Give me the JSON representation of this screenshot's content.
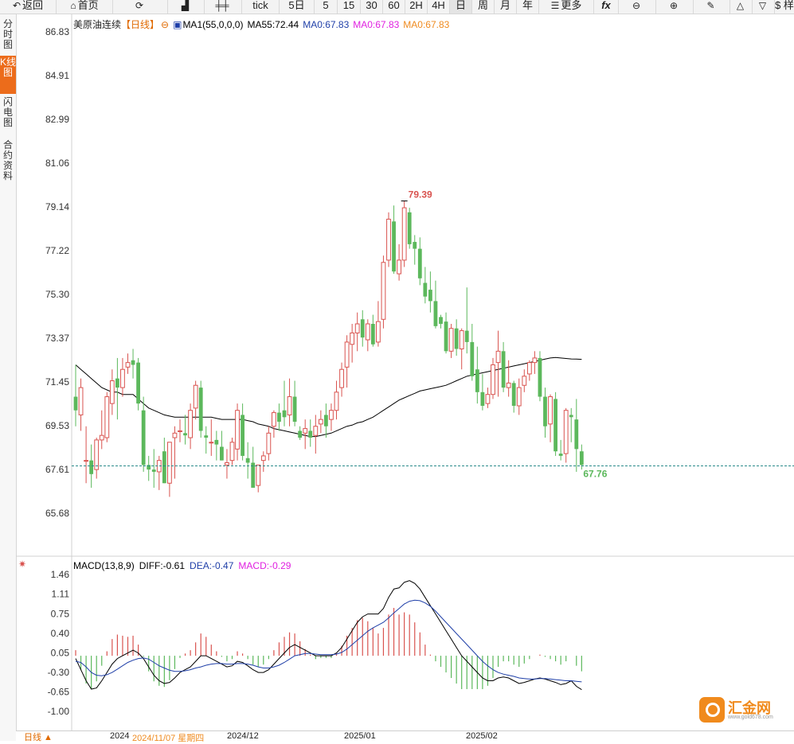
{
  "toolbar": {
    "back": "返回",
    "home": "首页",
    "tick": "tick",
    "d5": "5日",
    "m5": "5",
    "m15": "15",
    "m30": "30",
    "m60": "60",
    "h2": "2H",
    "h4": "4H",
    "day": "日",
    "week": "周",
    "month": "月",
    "year": "年",
    "more": "更多",
    "fx": "fx",
    "dollar": "$ 样"
  },
  "sidebar": [
    {
      "label": "分时图",
      "active": false
    },
    {
      "label": "K线图",
      "active": true
    },
    {
      "label": "闪电图",
      "active": false
    },
    {
      "label": "合约资料",
      "active": false
    }
  ],
  "legend": {
    "symbol": "美原油连续",
    "period": "【日线】",
    "ma1": "MA1(55,0,0,0)",
    "ma55": "MA55:72.44",
    "ma0_a": "MA0:67.83",
    "ma0_b": "MA0:67.83",
    "ma0_c": "MA0:67.83"
  },
  "macd_legend": {
    "title": "MACD(13,8,9)",
    "diff": "DIFF:-0.61",
    "dea": "DEA:-0.47",
    "macd": "MACD:-0.29"
  },
  "bottom": {
    "period": "日线",
    "d1": "2024",
    "d1b": "2024/11/07 星期四",
    "d2": "2024/12",
    "d3": "2025/01",
    "d4": "2025/02"
  },
  "logo": {
    "name": "汇金网",
    "url": "www.gold678.com"
  },
  "colors": {
    "up": "#d9534f",
    "down": "#5cb85c",
    "ma": "#000000",
    "diff": "#000000",
    "dea": "#1f3fa8",
    "macd_label": "#e020e0",
    "current": "#2a8a8a"
  },
  "chart_data": [
    {
      "type": "candlestick",
      "y_ticks": [
        86.83,
        84.91,
        82.99,
        81.06,
        79.14,
        77.22,
        75.3,
        73.37,
        71.45,
        69.53,
        67.61,
        65.68
      ],
      "ylim": [
        64.5,
        87.5
      ],
      "high_label": "79.39",
      "current_label": "67.76",
      "current_value": 67.76,
      "x_labels": [
        "2024",
        "2024/12",
        "2025/01",
        "2025/02"
      ],
      "ohlc": [
        [
          70.8,
          72.2,
          69.5,
          70.2
        ],
        [
          70.0,
          71.6,
          69.3,
          71.2
        ],
        [
          68.0,
          69.5,
          67.0,
          68.0
        ],
        [
          68.0,
          68.7,
          66.8,
          67.4
        ],
        [
          67.6,
          69.0,
          67.2,
          68.9
        ],
        [
          68.9,
          70.2,
          68.5,
          69.1
        ],
        [
          69.0,
          71.0,
          68.8,
          70.8
        ],
        [
          70.5,
          72.0,
          70.0,
          71.5
        ],
        [
          71.6,
          72.5,
          69.8,
          71.2
        ],
        [
          71.2,
          72.5,
          70.8,
          72.0
        ],
        [
          72.1,
          72.7,
          71.8,
          72.3
        ],
        [
          72.4,
          72.9,
          71.6,
          72.2
        ],
        [
          72.3,
          72.5,
          70.2,
          70.5
        ],
        [
          70.2,
          70.8,
          67.5,
          67.8
        ],
        [
          67.8,
          68.2,
          67.1,
          67.6
        ],
        [
          67.6,
          68.5,
          66.8,
          67.5
        ],
        [
          67.5,
          68.2,
          66.7,
          68.0
        ],
        [
          68.4,
          69.0,
          67.0,
          67.0
        ],
        [
          67.0,
          68.6,
          66.4,
          68.8
        ],
        [
          69.0,
          69.5,
          67.2,
          69.2
        ],
        [
          69.3,
          69.8,
          68.8,
          69.3
        ],
        [
          69.2,
          70.0,
          68.7,
          69.1
        ],
        [
          69.0,
          70.5,
          68.5,
          70.2
        ],
        [
          70.3,
          71.5,
          69.8,
          71.3
        ],
        [
          71.2,
          71.5,
          69.0,
          69.3
        ],
        [
          69.1,
          69.5,
          68.3,
          69.0
        ],
        [
          68.8,
          69.8,
          68.2,
          68.8
        ],
        [
          68.9,
          69.3,
          68.0,
          68.7
        ],
        [
          68.6,
          69.3,
          68.0,
          68.0
        ],
        [
          67.8,
          68.5,
          67.2,
          67.9
        ],
        [
          68.0,
          69.0,
          67.8,
          68.8
        ],
        [
          68.5,
          70.5,
          68.0,
          70.2
        ],
        [
          70.0,
          70.5,
          68.0,
          68.2
        ],
        [
          68.1,
          68.8,
          67.2,
          67.9
        ],
        [
          67.9,
          68.6,
          66.9,
          66.8
        ],
        [
          66.9,
          67.7,
          66.6,
          67.8
        ],
        [
          68.0,
          68.4,
          67.5,
          68.2
        ],
        [
          68.3,
          69.5,
          68.0,
          69.2
        ],
        [
          69.5,
          70.2,
          69.0,
          70.1
        ],
        [
          70.1,
          70.5,
          69.3,
          69.7
        ],
        [
          70.2,
          71.5,
          69.5,
          69.9
        ],
        [
          70.0,
          71.6,
          69.5,
          70.8
        ],
        [
          70.8,
          71.5,
          69.5,
          69.7
        ],
        [
          69.3,
          69.5,
          68.9,
          69.0
        ],
        [
          69.2,
          69.8,
          68.5,
          69.4
        ],
        [
          69.3,
          69.8,
          68.6,
          69.0
        ],
        [
          69.1,
          70.0,
          68.3,
          69.5
        ],
        [
          69.6,
          70.2,
          69.2,
          69.8
        ],
        [
          70.0,
          70.5,
          69.0,
          69.5
        ],
        [
          69.8,
          70.5,
          69.3,
          70.2
        ],
        [
          70.2,
          71.5,
          69.8,
          71.0
        ],
        [
          71.2,
          72.3,
          70.8,
          72.0
        ],
        [
          72.1,
          73.5,
          71.2,
          73.2
        ],
        [
          73.1,
          74.0,
          72.3,
          73.6
        ],
        [
          73.6,
          74.5,
          72.8,
          74.0
        ],
        [
          74.2,
          74.6,
          73.0,
          73.4
        ],
        [
          73.3,
          74.2,
          72.8,
          74.0
        ],
        [
          74.0,
          74.4,
          73.0,
          73.1
        ],
        [
          73.2,
          75.0,
          73.0,
          74.1
        ],
        [
          74.2,
          77.0,
          73.8,
          76.7
        ],
        [
          76.8,
          78.9,
          76.5,
          78.6
        ],
        [
          78.5,
          79.2,
          76.2,
          76.3
        ],
        [
          76.2,
          77.5,
          75.9,
          76.8
        ],
        [
          76.8,
          79.4,
          76.5,
          79.1
        ],
        [
          78.9,
          79.1,
          77.3,
          77.5
        ],
        [
          77.6,
          77.9,
          76.6,
          77.3
        ],
        [
          77.3,
          77.8,
          75.7,
          76.0
        ],
        [
          75.8,
          76.5,
          74.9,
          75.2
        ],
        [
          75.5,
          76.3,
          74.5,
          75.0
        ],
        [
          75.0,
          75.9,
          73.8,
          73.9
        ],
        [
          74.3,
          74.4,
          73.8,
          74.0
        ],
        [
          74.1,
          74.5,
          72.7,
          72.8
        ],
        [
          72.8,
          74.0,
          72.5,
          73.8
        ],
        [
          73.8,
          74.2,
          72.6,
          72.9
        ],
        [
          72.9,
          73.8,
          72.0,
          73.7
        ],
        [
          73.7,
          75.6,
          72.7,
          73.2
        ],
        [
          73.2,
          74.0,
          71.5,
          71.7
        ],
        [
          72.0,
          73.0,
          70.5,
          71.0
        ],
        [
          71.0,
          71.8,
          70.2,
          70.4
        ],
        [
          70.5,
          71.2,
          70.3,
          70.9
        ],
        [
          70.9,
          72.5,
          70.7,
          72.2
        ],
        [
          72.3,
          73.7,
          70.8,
          72.8
        ],
        [
          72.8,
          73.2,
          71.0,
          71.2
        ],
        [
          71.2,
          72.4,
          70.8,
          71.4
        ],
        [
          71.4,
          71.5,
          70.1,
          70.4
        ],
        [
          70.4,
          71.6,
          70.0,
          71.2
        ],
        [
          71.3,
          72.0,
          71.0,
          71.7
        ],
        [
          71.8,
          72.4,
          71.5,
          72.3
        ],
        [
          72.3,
          72.8,
          71.8,
          72.5
        ],
        [
          72.5,
          72.8,
          70.6,
          70.8
        ],
        [
          70.8,
          71.2,
          69.0,
          69.5
        ],
        [
          69.6,
          70.9,
          68.8,
          70.8
        ],
        [
          70.7,
          71.0,
          68.2,
          68.4
        ],
        [
          68.3,
          68.9,
          68.0,
          68.2
        ],
        [
          68.3,
          70.3,
          67.9,
          70.2
        ],
        [
          70.0,
          70.3,
          68.8,
          69.9
        ],
        [
          69.8,
          70.7,
          67.5,
          68.5
        ],
        [
          68.4,
          68.7,
          67.6,
          67.8
        ]
      ],
      "ma55": [
        72.2,
        72.0,
        71.8,
        71.6,
        71.4,
        71.2,
        71.1,
        71.0,
        71.0,
        70.9,
        70.9,
        70.9,
        70.7,
        70.5,
        70.3,
        70.2,
        70.1,
        70.0,
        69.95,
        69.9,
        69.9,
        69.9,
        69.9,
        69.9,
        69.9,
        69.9,
        69.9,
        69.85,
        69.8,
        69.8,
        69.8,
        69.8,
        69.8,
        69.75,
        69.7,
        69.6,
        69.55,
        69.5,
        69.4,
        69.35,
        69.3,
        69.25,
        69.2,
        69.15,
        69.1,
        69.05,
        69.05,
        69.1,
        69.15,
        69.2,
        69.3,
        69.4,
        69.5,
        69.55,
        69.65,
        69.7,
        69.8,
        69.9,
        70.05,
        70.2,
        70.35,
        70.5,
        70.65,
        70.75,
        70.85,
        70.95,
        71.05,
        71.1,
        71.15,
        71.2,
        71.25,
        71.3,
        71.4,
        71.5,
        71.6,
        71.7,
        71.75,
        71.8,
        71.85,
        71.9,
        71.95,
        72.0,
        72.05,
        72.1,
        72.15,
        72.2,
        72.25,
        72.3,
        72.35,
        72.4,
        72.45,
        72.5,
        72.52,
        72.5,
        72.48,
        72.46,
        72.45,
        72.44
      ],
      "macd_y_ticks": [
        1.46,
        1.11,
        0.75,
        0.4,
        0.05,
        -0.3,
        -0.65,
        -1.0
      ],
      "macd_ylim": [
        -1.38,
        1.6
      ],
      "diff": [
        -0.05,
        -0.25,
        -0.45,
        -0.6,
        -0.58,
        -0.45,
        -0.3,
        -0.15,
        -0.05,
        0.0,
        0.05,
        0.1,
        0.05,
        -0.05,
        -0.2,
        -0.35,
        -0.45,
        -0.5,
        -0.48,
        -0.4,
        -0.3,
        -0.25,
        -0.2,
        -0.1,
        0.0,
        0.0,
        -0.05,
        -0.1,
        -0.15,
        -0.2,
        -0.18,
        -0.1,
        -0.12,
        -0.18,
        -0.25,
        -0.3,
        -0.3,
        -0.25,
        -0.15,
        -0.05,
        0.05,
        0.15,
        0.2,
        0.15,
        0.1,
        0.05,
        0.0,
        0.0,
        0.0,
        0.0,
        0.05,
        0.15,
        0.3,
        0.45,
        0.6,
        0.7,
        0.75,
        0.75,
        0.75,
        0.85,
        1.05,
        1.2,
        1.22,
        1.32,
        1.35,
        1.3,
        1.2,
        1.05,
        0.9,
        0.75,
        0.6,
        0.45,
        0.3,
        0.15,
        0.0,
        -0.1,
        -0.2,
        -0.3,
        -0.4,
        -0.45,
        -0.45,
        -0.4,
        -0.38,
        -0.4,
        -0.45,
        -0.5,
        -0.48,
        -0.45,
        -0.42,
        -0.4,
        -0.42,
        -0.45,
        -0.48,
        -0.52,
        -0.5,
        -0.45,
        -0.55,
        -0.61
      ],
      "dea": [
        -0.1,
        -0.12,
        -0.2,
        -0.3,
        -0.35,
        -0.36,
        -0.34,
        -0.3,
        -0.24,
        -0.18,
        -0.12,
        -0.08,
        -0.05,
        -0.04,
        -0.06,
        -0.12,
        -0.18,
        -0.22,
        -0.26,
        -0.28,
        -0.28,
        -0.27,
        -0.25,
        -0.22,
        -0.2,
        -0.17,
        -0.15,
        -0.14,
        -0.14,
        -0.15,
        -0.15,
        -0.14,
        -0.14,
        -0.15,
        -0.17,
        -0.2,
        -0.22,
        -0.22,
        -0.2,
        -0.17,
        -0.12,
        -0.06,
        0.0,
        0.02,
        0.04,
        0.04,
        0.03,
        0.02,
        0.02,
        0.02,
        0.03,
        0.06,
        0.12,
        0.2,
        0.28,
        0.36,
        0.44,
        0.5,
        0.55,
        0.6,
        0.68,
        0.77,
        0.85,
        0.93,
        0.98,
        1.0,
        0.99,
        0.95,
        0.89,
        0.8,
        0.7,
        0.6,
        0.5,
        0.4,
        0.3,
        0.2,
        0.1,
        0.0,
        -0.1,
        -0.18,
        -0.25,
        -0.3,
        -0.33,
        -0.35,
        -0.37,
        -0.4,
        -0.41,
        -0.42,
        -0.42,
        -0.41,
        -0.41,
        -0.42,
        -0.43,
        -0.44,
        -0.45,
        -0.45,
        -0.46,
        -0.47
      ]
    }
  ]
}
